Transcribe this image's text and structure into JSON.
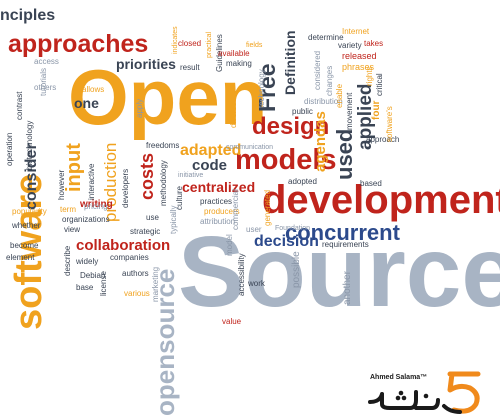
{
  "cloud": {
    "open": "Open",
    "source": "Source",
    "development": "development",
    "software": "software",
    "approaches": "approaches",
    "models": "models",
    "design": "design",
    "opensource": "opensource",
    "concurrent": "concurrent",
    "collaboration": "collaboration",
    "decision": "decision",
    "centralized": "centralized",
    "free": "Free",
    "used": "used",
    "applied": "applied",
    "costs": "costs",
    "code": "code",
    "production": "production",
    "input": "input",
    "principles": "nciples",
    "priorities": "priorities",
    "one": "one",
    "adapted": "adapted",
    "agendas": "agendas",
    "definition": "Definition",
    "based": "based",
    "adopted": "adopted",
    "foundation": "Foundation",
    "requirements": "requirements",
    "possible": "possible",
    "another": "another",
    "work": "work",
    "value": "value",
    "marketing": "marketing",
    "internet": "Internet",
    "takes": "takes",
    "released": "released",
    "phrases": "phrases",
    "critical": "critical",
    "approach": "approach",
    "variety": "variety",
    "determine": "determine",
    "distribution": "distribution",
    "public": "public",
    "technology": "technology",
    "guidelines": "Guidelines",
    "practical": "practical",
    "making": "making",
    "available": "available",
    "fields": "fields",
    "closed": "closed",
    "indicates": "indicates",
    "result": "result",
    "allows": "allows",
    "access": "access",
    "others": "others",
    "operation": "operation",
    "contrast": "contrast",
    "biotechnology": "biotechnology",
    "consider": "consider",
    "whether": "whether",
    "become": "become",
    "popularity": "popularity",
    "element": "element",
    "term": "term",
    "however": "however",
    "organizations": "organizations",
    "writing": "writing",
    "view": "view",
    "pricing": "pricing",
    "strategic": "strategic",
    "companies": "companies",
    "widely": "widely",
    "describe": "describe",
    "debian": "Debian",
    "license": "license",
    "base": "base",
    "authors": "authors",
    "various": "various",
    "freedoms": "freedoms",
    "culture": "culture",
    "practices": "practices",
    "producers": "producers",
    "attribution": "attribution",
    "commercial": "commercial",
    "initiative": "initiative",
    "developers": "developers",
    "methodology": "methodology",
    "interactive": "interactive",
    "apply": "apply",
    "communication": "communication",
    "diverse": "diverse",
    "generated": "generated",
    "user": "user",
    "model": "model",
    "accessibility": "accessibility",
    "typically": "typically",
    "use": "use",
    "software_s": "software's",
    "changes": "changes",
    "considered": "considered",
    "movement": "movement",
    "four": "four",
    "rights": "rights",
    "enable": "enable",
    "tutorials": "tutorials"
  },
  "logo": {
    "tagline": "Ahmed Salama™",
    "script": "خمسات",
    "colors": {
      "black": "#1a1a1a",
      "orange": "#f08a1c"
    }
  }
}
